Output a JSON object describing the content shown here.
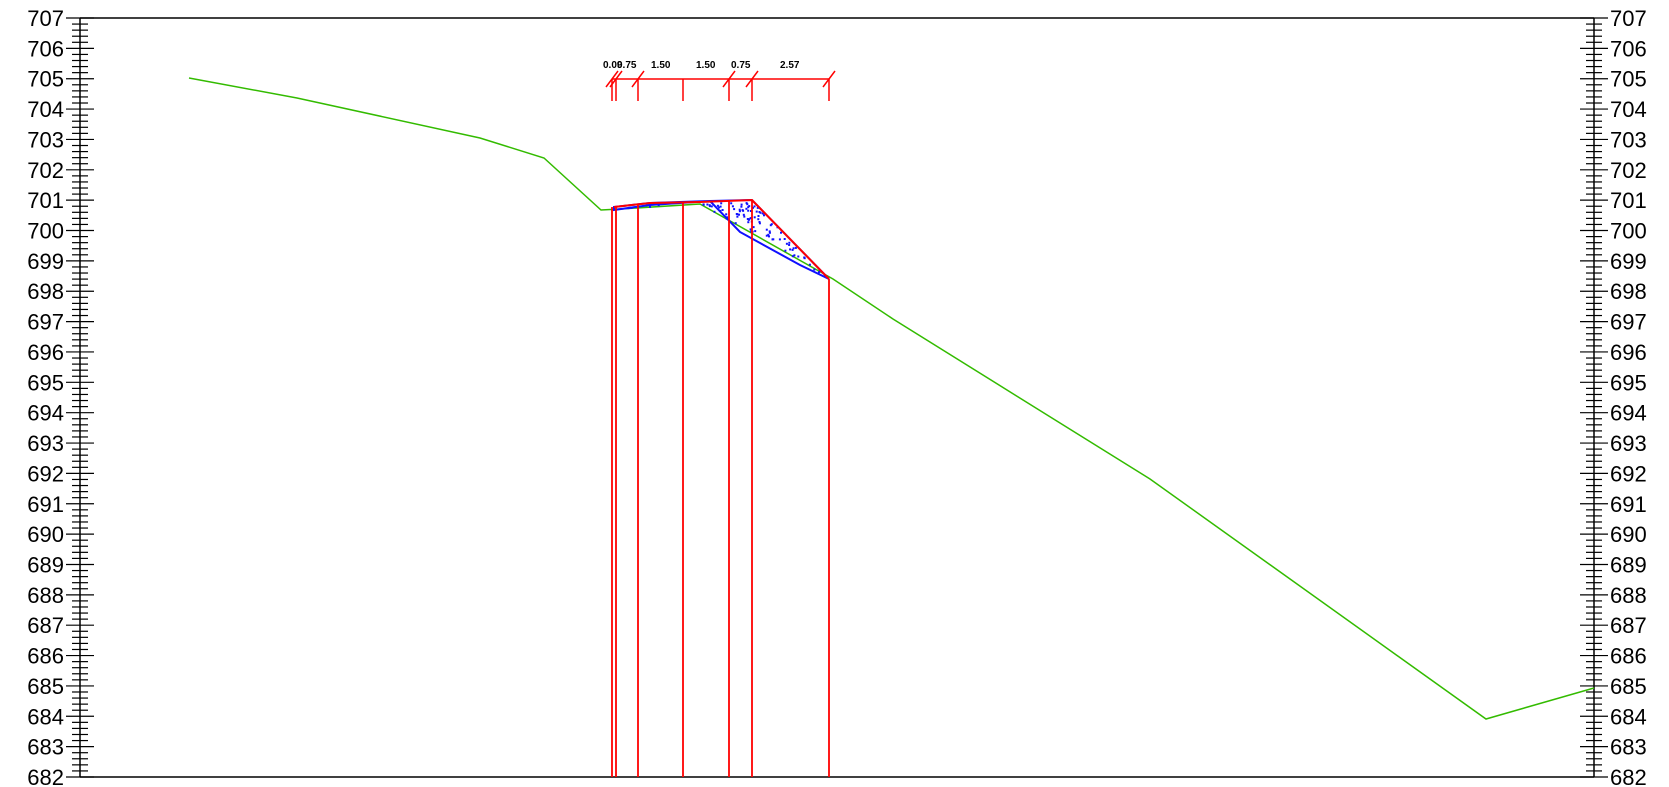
{
  "elevation_axis": {
    "min": 682,
    "max": 707,
    "tick_labels": [
      "707",
      "706",
      "705",
      "704",
      "703",
      "702",
      "701",
      "700",
      "699",
      "698",
      "697",
      "696",
      "695",
      "694",
      "693",
      "692",
      "691",
      "690",
      "689",
      "688",
      "687",
      "686",
      "685",
      "684",
      "683",
      "682"
    ]
  },
  "dimension_labels": [
    "0.09",
    "0.75",
    "1.50",
    "1.50",
    "0.75",
    "2.57"
  ],
  "colors": {
    "ground_line": "#33bb00",
    "design_section": "#ff0000",
    "fill_hatch": "#1010ff",
    "axis": "#000000"
  }
}
